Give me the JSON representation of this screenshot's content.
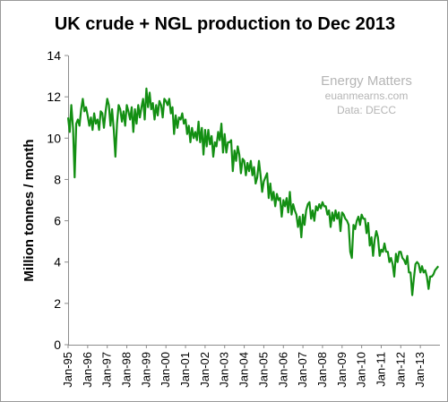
{
  "chart_data": {
    "type": "line",
    "title": "UK crude + NGL  production to Dec 2013",
    "xlabel": "",
    "ylabel": "Million  tonnes / month",
    "ylim": [
      0,
      14
    ],
    "yticks": [
      0,
      2,
      4,
      6,
      8,
      10,
      12,
      14
    ],
    "grid": false,
    "line_color": "#138f13",
    "watermark": [
      "Energy Matters",
      "euanmearns.com",
      "Data: DECC"
    ],
    "x_start": "1995-01",
    "x_end": "2013-12",
    "x_tick_labels": [
      "Jan-95",
      "Jan-96",
      "Jan-97",
      "Jan-98",
      "Jan-99",
      "Jan-00",
      "Jan-01",
      "Jan-02",
      "Jan-03",
      "Jan-04",
      "Jan-05",
      "Jan-06",
      "Jan-07",
      "Jan-08",
      "Jan-09",
      "Jan-10",
      "Jan-11",
      "Jan-12",
      "Jan-13"
    ],
    "series": [
      {
        "name": "",
        "x": [
          "1995-01",
          "1995-02",
          "1995-03",
          "1995-04",
          "1995-05",
          "1995-06",
          "1995-07",
          "1995-08",
          "1995-09",
          "1995-10",
          "1995-11",
          "1995-12",
          "1996-01",
          "1996-02",
          "1996-03",
          "1996-04",
          "1996-05",
          "1996-06",
          "1996-07",
          "1996-08",
          "1996-09",
          "1996-10",
          "1996-11",
          "1996-12",
          "1997-01",
          "1997-02",
          "1997-03",
          "1997-04",
          "1997-05",
          "1997-06",
          "1997-07",
          "1997-08",
          "1997-09",
          "1997-10",
          "1997-11",
          "1997-12",
          "1998-01",
          "1998-02",
          "1998-03",
          "1998-04",
          "1998-05",
          "1998-06",
          "1998-07",
          "1998-08",
          "1998-09",
          "1998-10",
          "1998-11",
          "1998-12",
          "1999-01",
          "1999-02",
          "1999-03",
          "1999-04",
          "1999-05",
          "1999-06",
          "1999-07",
          "1999-08",
          "1999-09",
          "1999-10",
          "1999-11",
          "1999-12",
          "2000-01",
          "2000-02",
          "2000-03",
          "2000-04",
          "2000-05",
          "2000-06",
          "2000-07",
          "2000-08",
          "2000-09",
          "2000-10",
          "2000-11",
          "2000-12",
          "2001-01",
          "2001-02",
          "2001-03",
          "2001-04",
          "2001-05",
          "2001-06",
          "2001-07",
          "2001-08",
          "2001-09",
          "2001-10",
          "2001-11",
          "2001-12",
          "2002-01",
          "2002-02",
          "2002-03",
          "2002-04",
          "2002-05",
          "2002-06",
          "2002-07",
          "2002-08",
          "2002-09",
          "2002-10",
          "2002-11",
          "2002-12",
          "2003-01",
          "2003-02",
          "2003-03",
          "2003-04",
          "2003-05",
          "2003-06",
          "2003-07",
          "2003-08",
          "2003-09",
          "2003-10",
          "2003-11",
          "2003-12",
          "2004-01",
          "2004-02",
          "2004-03",
          "2004-04",
          "2004-05",
          "2004-06",
          "2004-07",
          "2004-08",
          "2004-09",
          "2004-10",
          "2004-11",
          "2004-12",
          "2005-01",
          "2005-02",
          "2005-03",
          "2005-04",
          "2005-05",
          "2005-06",
          "2005-07",
          "2005-08",
          "2005-09",
          "2005-10",
          "2005-11",
          "2005-12",
          "2006-01",
          "2006-02",
          "2006-03",
          "2006-04",
          "2006-05",
          "2006-06",
          "2006-07",
          "2006-08",
          "2006-09",
          "2006-10",
          "2006-11",
          "2006-12",
          "2007-01",
          "2007-02",
          "2007-03",
          "2007-04",
          "2007-05",
          "2007-06",
          "2007-07",
          "2007-08",
          "2007-09",
          "2007-10",
          "2007-11",
          "2007-12",
          "2008-01",
          "2008-02",
          "2008-03",
          "2008-04",
          "2008-05",
          "2008-06",
          "2008-07",
          "2008-08",
          "2008-09",
          "2008-10",
          "2008-11",
          "2008-12",
          "2009-01",
          "2009-02",
          "2009-03",
          "2009-04",
          "2009-05",
          "2009-06",
          "2009-07",
          "2009-08",
          "2009-09",
          "2009-10",
          "2009-11",
          "2009-12",
          "2010-01",
          "2010-02",
          "2010-03",
          "2010-04",
          "2010-05",
          "2010-06",
          "2010-07",
          "2010-08",
          "2010-09",
          "2010-10",
          "2010-11",
          "2010-12",
          "2011-01",
          "2011-02",
          "2011-03",
          "2011-04",
          "2011-05",
          "2011-06",
          "2011-07",
          "2011-08",
          "2011-09",
          "2011-10",
          "2011-11",
          "2011-12",
          "2012-01",
          "2012-02",
          "2012-03",
          "2012-04",
          "2012-05",
          "2012-06",
          "2012-07",
          "2012-08",
          "2012-09",
          "2012-10",
          "2012-11",
          "2012-12",
          "2013-01",
          "2013-02",
          "2013-03",
          "2013-04",
          "2013-05",
          "2013-06",
          "2013-07",
          "2013-08",
          "2013-09",
          "2013-10",
          "2013-11",
          "2013-12"
        ],
        "values": [
          11.0,
          10.3,
          11.6,
          10.5,
          8.1,
          10.7,
          10.9,
          10.6,
          11.4,
          11.9,
          11.3,
          11.5,
          11.1,
          10.6,
          11.0,
          10.4,
          11.2,
          10.7,
          10.9,
          10.4,
          11.3,
          11.2,
          10.5,
          11.3,
          11.9,
          11.6,
          10.6,
          11.4,
          10.4,
          9.1,
          10.7,
          11.6,
          11.4,
          10.8,
          11.3,
          10.6,
          11.6,
          11.3,
          10.9,
          11.5,
          10.3,
          11.4,
          10.7,
          11.6,
          11.0,
          11.5,
          11.9,
          10.9,
          12.4,
          11.5,
          12.2,
          11.4,
          11.7,
          10.9,
          11.6,
          11.1,
          11.8,
          11.6,
          11.0,
          11.9,
          11.8,
          11.6,
          11.9,
          11.2,
          11.5,
          10.2,
          11.1,
          10.5,
          11.0,
          10.9,
          11.2,
          10.7,
          10.9,
          10.2,
          10.6,
          9.8,
          10.5,
          10.0,
          10.3,
          9.9,
          10.8,
          9.8,
          10.5,
          9.2,
          10.4,
          9.6,
          10.4,
          9.7,
          10.1,
          9.1,
          9.8,
          9.6,
          10.3,
          9.9,
          10.7,
          9.3,
          10.2,
          9.3,
          9.8,
          9.8,
          9.9,
          8.4,
          9.4,
          8.9,
          9.6,
          9.2,
          8.3,
          9.0,
          8.9,
          8.2,
          8.8,
          8.4,
          8.9,
          8.2,
          8.6,
          7.8,
          8.1,
          8.9,
          8.2,
          7.4,
          7.9,
          8.1,
          8.3,
          7.1,
          7.8,
          7.0,
          7.4,
          6.7,
          7.3,
          7.0,
          7.1,
          6.2,
          7.0,
          6.7,
          7.1,
          6.4,
          7.4,
          6.3,
          6.8,
          6.5,
          6.3,
          5.7,
          6.2,
          5.2,
          6.3,
          5.8,
          6.5,
          6.8,
          6.9,
          6.1,
          6.5,
          6.0,
          6.7,
          6.5,
          6.8,
          6.6,
          6.9,
          6.7,
          6.7,
          6.3,
          6.5,
          5.7,
          6.4,
          6.0,
          6.5,
          6.1,
          6.4,
          5.5,
          6.4,
          6.3,
          6.1,
          6.0,
          5.8,
          4.5,
          4.2,
          5.8,
          5.6,
          6.0,
          6.2,
          5.8,
          6.3,
          6.1,
          6.1,
          5.4,
          5.9,
          4.8,
          5.2,
          4.3,
          5.1,
          5.5,
          5.2,
          4.3,
          4.6,
          4.5,
          4.9,
          4.5,
          4.5,
          4.0,
          4.2,
          3.9,
          3.3,
          4.4,
          4.0,
          4.5,
          4.5,
          4.2,
          4.1,
          3.9,
          4.3,
          3.5,
          3.5,
          2.4,
          3.2,
          3.9,
          4.0,
          3.9,
          3.5,
          3.8,
          3.5,
          3.6,
          3.3,
          2.7,
          3.3,
          3.3,
          3.4,
          3.6,
          3.7,
          3.8
        ]
      }
    ]
  }
}
